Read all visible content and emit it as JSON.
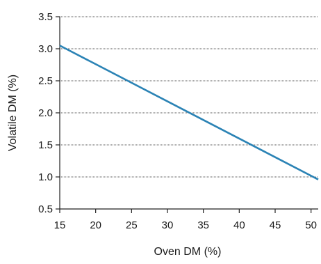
{
  "chart_data": {
    "type": "line",
    "title": "",
    "xlabel": "Oven DM (%)",
    "ylabel": "Volatile DM (%)",
    "xlim": [
      15,
      51
    ],
    "ylim": [
      0.5,
      3.5
    ],
    "x_ticks": [
      15,
      20,
      25,
      30,
      35,
      40,
      45,
      50
    ],
    "x_tick_labels": [
      "15",
      "20",
      "25",
      "30",
      "35",
      "40",
      "45",
      "50"
    ],
    "y_ticks": [
      0.5,
      1.0,
      1.5,
      2.0,
      2.5,
      3.0,
      3.5
    ],
    "y_tick_labels": [
      "0.5",
      "1.0",
      "1.5",
      "2.0",
      "2.5",
      "3.0",
      "3.5"
    ],
    "grid": "horizontal dotted",
    "legend": "none",
    "series": [
      {
        "color": "#2b83b5",
        "x": [
          15,
          51
        ],
        "y": [
          3.05,
          0.96
        ]
      }
    ]
  }
}
